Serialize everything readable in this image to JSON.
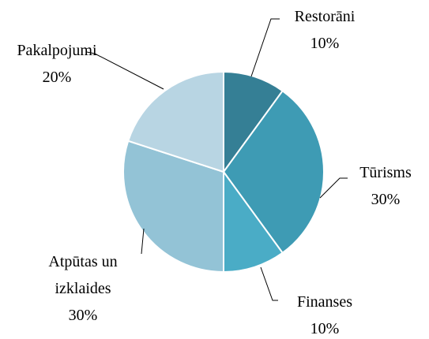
{
  "chart_data": {
    "type": "pie",
    "categories": [
      "Restorāni",
      "Tūrisms",
      "Finanses",
      "Atpūtas un izklaides",
      "Pakalpojumi"
    ],
    "values": [
      10,
      30,
      10,
      30,
      20
    ],
    "value_labels": [
      "10%",
      "30%",
      "10%",
      "30%",
      "20%"
    ],
    "colors": [
      "#357f95",
      "#3e9bb4",
      "#4aacc6",
      "#93c3d6",
      "#b8d5e3"
    ]
  }
}
